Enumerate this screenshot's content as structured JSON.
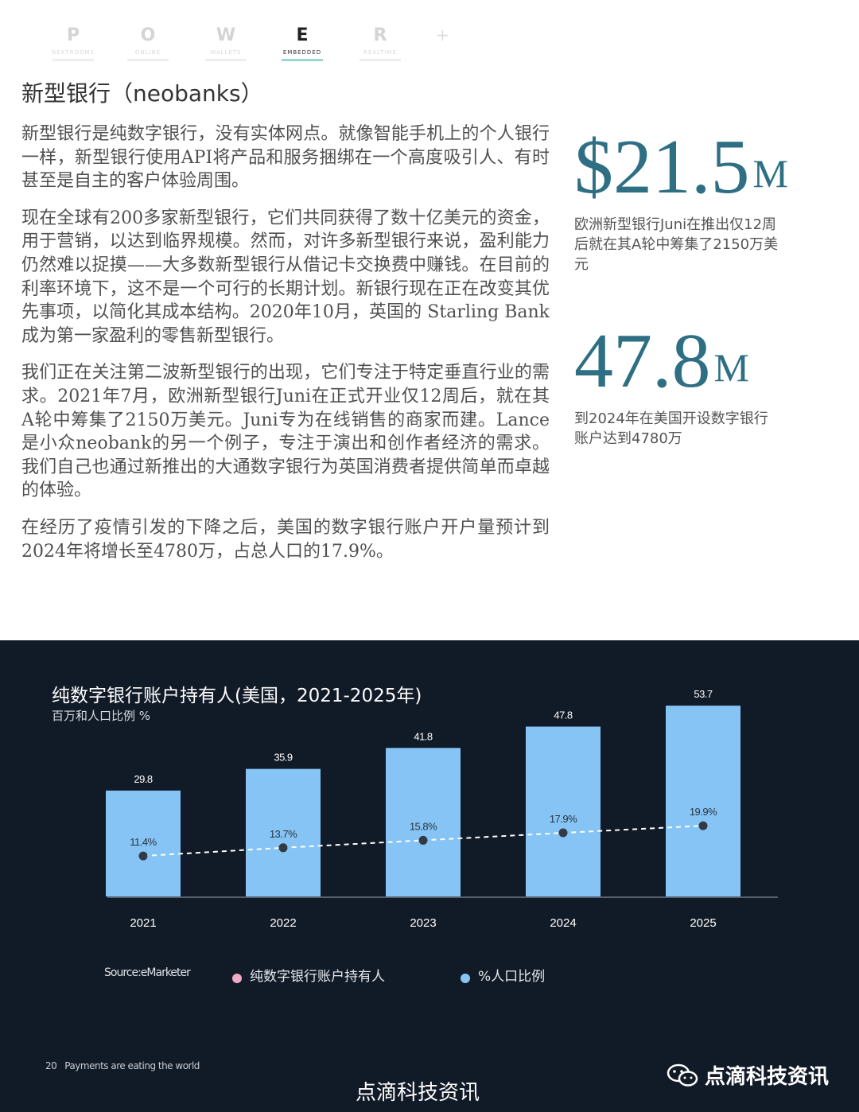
{
  "nav": {
    "items": [
      {
        "letter": "P",
        "sub": "NEXTROOMS"
      },
      {
        "letter": "O",
        "sub": "ONLINE"
      },
      {
        "letter": "W",
        "sub": "WALLETS"
      },
      {
        "letter": "E",
        "sub": "EMBEDDED"
      },
      {
        "letter": "R",
        "sub": "REALTIME"
      }
    ],
    "plus": "+"
  },
  "section_title": "新型银行（neobanks）",
  "paragraphs": [
    "新型银行是纯数字银行，没有实体网点。就像智能手机上的个人银行一样，新型银行使用API将产品和服务捆绑在一个高度吸引人、有时甚至是自主的客户体验周围。",
    "现在全球有200多家新型银行，它们共同获得了数十亿美元的资金，用于营销，以达到临界规模。然而，对许多新型银行来说，盈利能力仍然难以捉摸——大多数新型银行从借记卡交换费中赚钱。在目前的利率环境下，这不是一个可行的长期计划。新银行现在正在改变其优先事项，以简化其成本结构。2020年10月，英国的 Starling Bank成为第一家盈利的零售新型银行。",
    "我们正在关注第二波新型银行的出现，它们专注于特定垂直行业的需求。2021年7月，欧洲新型银行Juni在正式开业仅12周后，就在其A轮中筹集了2150万美元。Juni专为在线销售的商家而建。Lance是小众neobank的另一个例子，专注于演出和创作者经济的需求。我们自己也通过新推出的大通数字银行为英国消费者提供简单而卓越的体验。",
    "在经历了疫情引发的下降之后，美国的数字银行账户开户量预计到2024年将增长至4780万，占总人口的17.9%。"
  ],
  "stats": [
    {
      "number": "$21.5",
      "unit": "M",
      "desc": "欧洲新型银行Juni在推出仅12周后就在其A轮中筹集了2150万美元"
    },
    {
      "number": "47.8",
      "unit": "M",
      "desc": "到2024年在美国开设数字银行账户达到4780万"
    }
  ],
  "chart": {
    "title": "纯数字银行账户持有人(美国，2021-2025年)",
    "subtitle": "百万和人口比例 %",
    "source": "Source:eMarketer",
    "legend": [
      {
        "label": "纯数字银行账户持有人",
        "color": "#f0a9c6"
      },
      {
        "label": "%人口比例",
        "color": "#85c4f4"
      }
    ]
  },
  "chart_data": {
    "type": "bar",
    "categories": [
      "2021",
      "2022",
      "2023",
      "2024",
      "2025"
    ],
    "series": [
      {
        "name": "纯数字银行账户持有人",
        "values": [
          29.8,
          35.9,
          41.8,
          47.8,
          53.7
        ],
        "labels": [
          "29.8",
          "35.9",
          "41.8",
          "47.8",
          "53.7"
        ],
        "color": "#85c4f4"
      },
      {
        "name": "%人口比例",
        "values": [
          11.4,
          13.7,
          15.8,
          17.9,
          19.9
        ],
        "labels": [
          "11.4%",
          "13.7%",
          "15.8%",
          "17.9%",
          "19.9%"
        ],
        "color": "#333a44"
      }
    ],
    "title": "纯数字银行账户持有人(美国，2021-2025年)",
    "ylabel": "百万和人口比例 %",
    "ylim": [
      0,
      60
    ],
    "y2lim": [
      0,
      60
    ],
    "grid": false,
    "legend": "bottom"
  },
  "footer": {
    "page_number": "20",
    "tagline": "Payments are eating the world",
    "watermark": "点滴科技资讯",
    "brand": "点滴科技资讯"
  }
}
